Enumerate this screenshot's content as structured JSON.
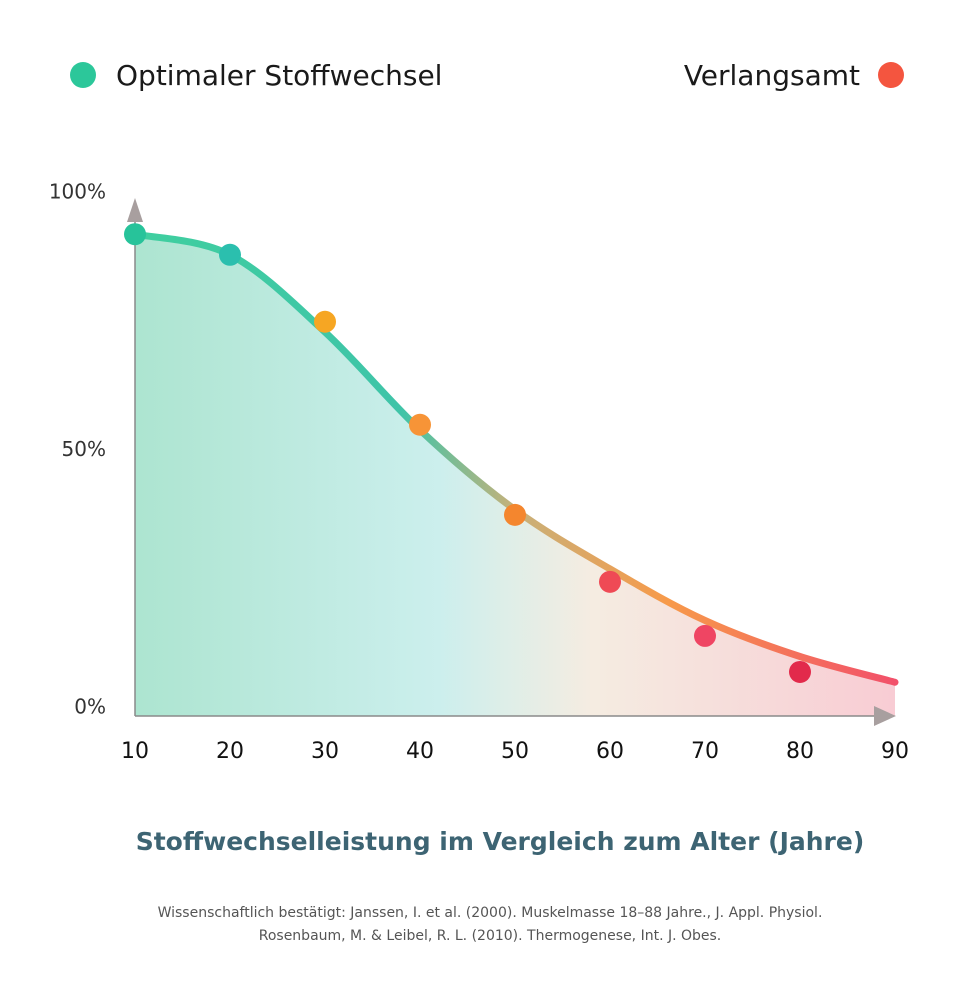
{
  "chart_data": {
    "type": "line",
    "legend": [
      {
        "label": "Optimaler Stoffwechsel",
        "color": "#2cc79a"
      },
      {
        "label": "Verlangsamt",
        "color": "#f4553f"
      }
    ],
    "x": [
      10,
      20,
      30,
      40,
      50,
      60,
      70,
      80,
      90
    ],
    "xlim": [
      10,
      90
    ],
    "xticks": [
      10,
      20,
      30,
      40,
      50,
      60,
      70,
      80,
      90
    ],
    "ylim": [
      0,
      100
    ],
    "yticks": [
      {
        "value": 100,
        "label": "100%"
      },
      {
        "value": 50,
        "label": "50%"
      },
      {
        "value": 0,
        "label": "0%"
      }
    ],
    "series": [
      {
        "values": [
          92,
          88,
          73,
          54,
          38.5,
          27,
          17,
          10,
          5
        ]
      },
      {
        "values": [
          92,
          88,
          75,
          55,
          37.5,
          24.5,
          14,
          7,
          null
        ],
        "colors": [
          "#27c39a",
          "#2bbfae",
          "#f6a623",
          "#f79437",
          "#f4862e",
          "#ef4a55",
          "#ef4563",
          "#e22a4b",
          null
        ]
      }
    ],
    "title": "Stoffwechselleistung im Vergleich zum Alter (Jahre)",
    "source": [
      "Wissenschaftlich bestätigt:  Janssen, I. et al. (2000). Muskelmasse 18–88 Jahre., J. Appl. Physiol.",
      "Rosenbaum, M. & Leibel, R. L. (2010). Thermogenese, Int. J. Obes."
    ]
  }
}
